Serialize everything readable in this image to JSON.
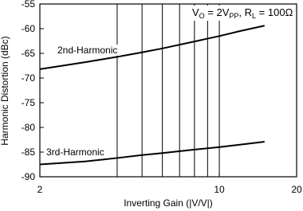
{
  "chart_data": {
    "type": "line",
    "xlabel": "Inverting Gain (|V/V|)",
    "ylabel": "Harmonic Distortion (dBc)",
    "xscale": "log",
    "xlim": [
      2,
      20
    ],
    "xticks": [
      2,
      10,
      20
    ],
    "xminor": [
      4,
      5,
      6,
      7,
      8,
      9
    ],
    "ylim": [
      -90,
      -55
    ],
    "yticks": [
      -90,
      -85,
      -80,
      -75,
      -70,
      -65,
      -60,
      -55
    ],
    "grid": "x",
    "annotation": [
      {
        "text": "V"
      },
      {
        "text": "O",
        "sub": true
      },
      {
        "text": " = 2V"
      },
      {
        "text": "PP",
        "sub": true
      },
      {
        "text": ", R"
      },
      {
        "text": "L",
        "sub": true
      },
      {
        "text": " = 100Ω"
      }
    ],
    "x": [
      2,
      3,
      4,
      5,
      6,
      8,
      10,
      12,
      15
    ],
    "series": [
      {
        "name": "2nd-Harmonic",
        "color": "#000000",
        "values": [
          -68.2,
          -66.8,
          -65.7,
          -64.8,
          -64.0,
          -62.6,
          -61.5,
          -60.5,
          -59.4
        ]
      },
      {
        "name": "3rd-Harmonic",
        "color": "#000000",
        "values": [
          -87.5,
          -86.9,
          -86.2,
          -85.6,
          -85.2,
          -84.5,
          -84.0,
          -83.5,
          -82.9
        ]
      }
    ]
  }
}
